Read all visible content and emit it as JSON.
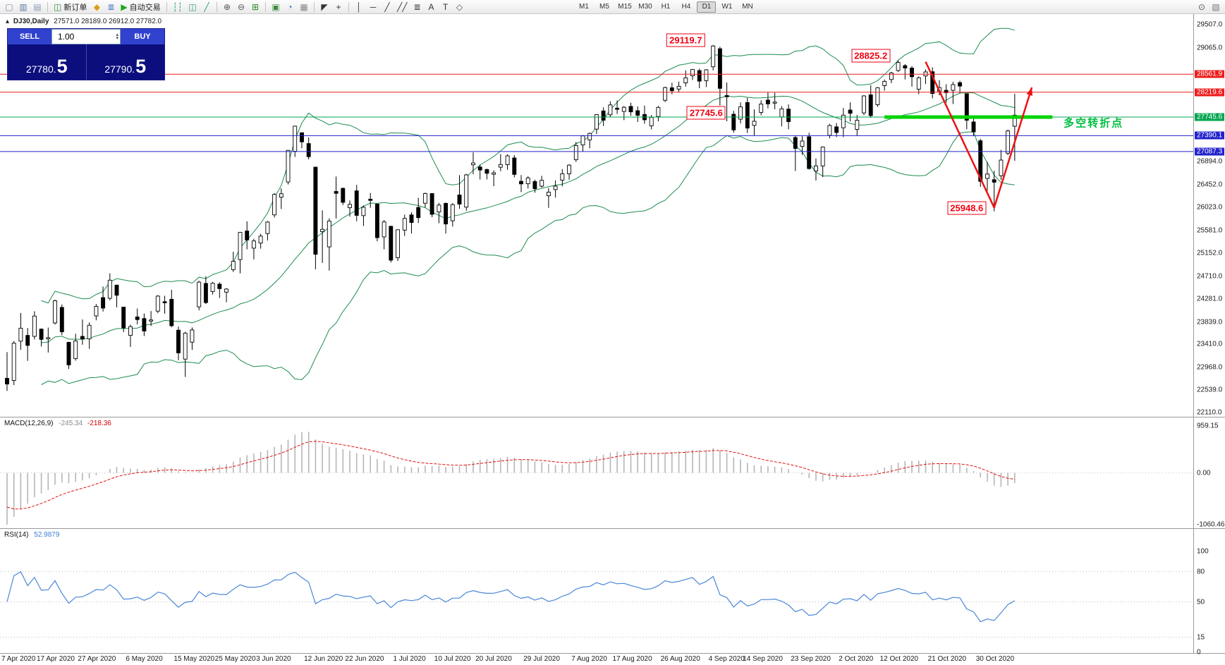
{
  "toolbar": {
    "items": [
      {
        "t": "i",
        "name": "new-window-icon",
        "g": "▢",
        "c": "#7a8aa8"
      },
      {
        "t": "i",
        "name": "chart-window-icon",
        "g": "▥",
        "c": "#5a78a8"
      },
      {
        "t": "i",
        "name": "clipboard-icon",
        "g": "▤",
        "c": "#8a9ab8"
      },
      {
        "t": "s"
      },
      {
        "t": "b",
        "name": "new-order-button",
        "g": "◫",
        "c": "#3c8a3c",
        "label": "新订单"
      },
      {
        "t": "i",
        "name": "indicators-icon",
        "g": "◆",
        "c": "#d8a018"
      },
      {
        "t": "i",
        "name": "depth-of-market-icon",
        "g": "≣",
        "c": "#3a6cc8"
      },
      {
        "t": "b",
        "name": "autotrading-button",
        "g": "▶",
        "c": "#18a818",
        "label": "自动交易"
      },
      {
        "t": "s"
      },
      {
        "t": "i",
        "name": "bar-chart-type-icon",
        "g": "┆┆",
        "c": "#2a9a7a"
      },
      {
        "t": "i",
        "name": "candle-chart-type-icon",
        "g": "◫",
        "c": "#2a9a7a"
      },
      {
        "t": "i",
        "name": "line-chart-type-ic",
        "g": "╱",
        "c": "#2a9a7a"
      },
      {
        "t": "s"
      },
      {
        "t": "i",
        "name": "zoom-in-icon",
        "g": "⊕",
        "c": "#555555"
      },
      {
        "t": "i",
        "name": "zoom-out-icon",
        "g": "⊖",
        "c": "#555555"
      },
      {
        "t": "i",
        "name": "tile-windows-icon",
        "g": "⊞",
        "c": "#2a8a2a"
      },
      {
        "t": "s"
      },
      {
        "t": "i",
        "name": "new-chart-icon",
        "g": "▣",
        "c": "#3c8a3c"
      },
      {
        "t": "i",
        "name": "profiles-icon",
        "g": "◔",
        "c": "#3a6cc8"
      },
      {
        "t": "i",
        "name": "data-window-icon",
        "g": "▦",
        "c": "#888888"
      },
      {
        "t": "s"
      },
      {
        "t": "i",
        "name": "cursor-icon",
        "g": "◤",
        "c": "#333333"
      },
      {
        "t": "i",
        "name": "crosshair-icon",
        "g": "+",
        "c": "#333333"
      },
      {
        "t": "s"
      },
      {
        "t": "i",
        "name": "vertical-line-icon",
        "g": "│",
        "c": "#333333"
      },
      {
        "t": "i",
        "name": "horizontal-line-icon",
        "g": "─",
        "c": "#333333"
      },
      {
        "t": "i",
        "name": "trendline-icon",
        "g": "╱",
        "c": "#333333"
      },
      {
        "t": "i",
        "name": "channel-icon",
        "g": "╱╱",
        "c": "#333333"
      },
      {
        "t": "i",
        "name": "fibonacci-icon",
        "g": "≣",
        "c": "#333333"
      },
      {
        "t": "i",
        "name": "text-tool-icon",
        "g": "A",
        "c": "#333333"
      },
      {
        "t": "i",
        "name": "label-tool-icon",
        "g": "T",
        "c": "#333333"
      },
      {
        "t": "i",
        "name": "shapes-tool-icon",
        "g": "◇",
        "c": "#555555"
      },
      {
        "t": "sp"
      },
      {
        "t": "tf"
      },
      {
        "t": "sp2"
      },
      {
        "t": "i",
        "name": "search-icon",
        "g": "⊙",
        "c": "#555555"
      },
      {
        "t": "i",
        "name": "window-menu-icon",
        "g": "▧",
        "c": "#777777"
      }
    ],
    "timeframes": [
      "M1",
      "M5",
      "M15",
      "M30",
      "H1",
      "H4",
      "D1",
      "W1",
      "MN"
    ],
    "active_timeframe": "D1"
  },
  "quote_panel": {
    "collapse_icon": "▴",
    "symbol": "DJ30,Daily",
    "ohlc_text": "27571.0 28189.0 26912.0 27782.0",
    "sell_label": "SELL",
    "buy_label": "BUY",
    "volume": "1.00",
    "sell_price_main": "27780.",
    "sell_price_big": "5",
    "buy_price_main": "27790.",
    "buy_price_big": "5"
  },
  "macd_panel": {
    "title": "MACD(12,26,9)",
    "value_main": "-245.34",
    "value_signal": "-218.36",
    "ticks": [
      "959.15",
      "0.00",
      "-1060.46"
    ],
    "tick_values": [
      959.15,
      0,
      -1060.46
    ]
  },
  "rsi_panel": {
    "title": "RSI(14)",
    "value": "52.9879",
    "ticks": [
      "100",
      "80",
      "50",
      "15",
      "0"
    ],
    "tick_values": [
      100,
      80,
      50,
      15,
      0
    ],
    "level_lines": [
      80,
      50,
      15
    ]
  },
  "chart_data": {
    "type": "candlestick",
    "symbol": "DJ30",
    "timeframe": "Daily",
    "indicators": [
      {
        "type": "bollinger",
        "period": 20,
        "deviation": 2,
        "color": "#1c8c4e"
      },
      {
        "type": "macd",
        "fast": 12,
        "slow": 26,
        "signal": 9,
        "current_macd": -245.34,
        "current_signal": -218.36
      },
      {
        "type": "rsi",
        "period": 14,
        "current": 52.9879
      }
    ],
    "price_axis_ticks": [
      29507.0,
      29065.0,
      26894.0,
      26452.0,
      26023.0,
      25581.0,
      25152.0,
      24710.0,
      24281.0,
      23839.0,
      23410.0,
      22968.0,
      22539.0,
      22110.0
    ],
    "levels": [
      {
        "price": 28561.9,
        "color": "#ee1c1c",
        "width": 1
      },
      {
        "price": 28219.6,
        "color": "#ee1c1c",
        "width": 1
      },
      {
        "price": 27745.6,
        "color": "#00a550",
        "width": 1
      },
      {
        "price": 27390.1,
        "color": "#2222cc",
        "width": 1
      },
      {
        "price": 27087.3,
        "color": "#2222cc",
        "width": 1
      }
    ],
    "trend_segment": {
      "price": 27745.6,
      "i1": 128,
      "i2": 152.5,
      "color": "#00d400",
      "width": 5
    },
    "arrow": {
      "points": [
        [
          134,
          28800
        ],
        [
          144,
          26020
        ],
        [
          149.5,
          28310
        ]
      ],
      "color": "#ee1111",
      "width": 2.5
    },
    "annotations": [
      {
        "text": "29119.7",
        "i": 99,
        "price": 29210
      },
      {
        "text": "28825.2",
        "i": 126,
        "price": 28920
      },
      {
        "text": "27745.6",
        "i": 102,
        "price": 27830
      },
      {
        "text": "25948.6",
        "i": 140,
        "price": 26010
      }
    ],
    "note": {
      "text": "多空转折点",
      "i": 158.5,
      "price": 27640,
      "color": "#00c040"
    },
    "time_ticks": [
      [
        "7 Apr 2020",
        0
      ],
      [
        "17 Apr 2020",
        7
      ],
      [
        "27 Apr 2020",
        13
      ],
      [
        "6 May 2020",
        20
      ],
      [
        "15 May 2020",
        27
      ],
      [
        "25 May 2020",
        33
      ],
      [
        "3 Jun 2020",
        39
      ],
      [
        "12 Jun 2020",
        46
      ],
      [
        "22 Jun 2020",
        52
      ],
      [
        "1 Jul 2020",
        59
      ],
      [
        "10 Jul 2020",
        65
      ],
      [
        "20 Jul 2020",
        71
      ],
      [
        "29 Jul 2020",
        78
      ],
      [
        "7 Aug 2020",
        85
      ],
      [
        "17 Aug 2020",
        91
      ],
      [
        "26 Aug 2020",
        98
      ],
      [
        "4 Sep 2020",
        105
      ],
      [
        "14 Sep 2020",
        110
      ],
      [
        "23 Sep 2020",
        117
      ],
      [
        "2 Oct 2020",
        124
      ],
      [
        "12 Oct 2020",
        130
      ],
      [
        "21 Oct 2020",
        137
      ],
      [
        "30 Oct 2020",
        144
      ]
    ],
    "ohlc": [
      [
        22763,
        23264,
        22522,
        22654
      ],
      [
        22722,
        23474,
        22634,
        23434
      ],
      [
        23471,
        24009,
        23306,
        23719
      ],
      [
        23582,
        23723,
        23096,
        23391
      ],
      [
        23562,
        24041,
        23503,
        23950
      ],
      [
        23701,
        23715,
        23369,
        23504
      ],
      [
        23520,
        23731,
        23255,
        23538
      ],
      [
        23819,
        24264,
        23790,
        24242
      ],
      [
        24115,
        24170,
        23585,
        23650
      ],
      [
        23450,
        23459,
        22941,
        23019
      ],
      [
        23139,
        23613,
        23100,
        23476
      ],
      [
        23563,
        23885,
        23404,
        23515
      ],
      [
        23515,
        23829,
        23328,
        23775
      ],
      [
        23952,
        24180,
        23869,
        24134
      ],
      [
        24302,
        24512,
        24036,
        24102
      ],
      [
        24289,
        24765,
        24250,
        24634
      ],
      [
        24540,
        24549,
        24115,
        24346
      ],
      [
        24121,
        24122,
        23645,
        23724
      ],
      [
        23582,
        23787,
        23361,
        23749
      ],
      [
        23934,
        24094,
        23791,
        23883
      ],
      [
        23903,
        23999,
        23570,
        23665
      ],
      [
        23871,
        24045,
        23762,
        23876
      ],
      [
        24044,
        24349,
        24005,
        24331
      ],
      [
        24224,
        24337,
        23996,
        24222
      ],
      [
        24270,
        24452,
        23738,
        23765
      ],
      [
        23681,
        23748,
        23108,
        23248
      ],
      [
        23130,
        23653,
        22790,
        23625
      ],
      [
        23452,
        23733,
        23306,
        23685
      ],
      [
        24126,
        24624,
        24060,
        24597
      ],
      [
        24573,
        24711,
        24182,
        24207
      ],
      [
        24418,
        24601,
        24360,
        24576
      ],
      [
        24560,
        24595,
        24294,
        24474
      ],
      [
        24406,
        24482,
        24214,
        24465
      ],
      [
        24836,
        25176,
        24790,
        24995
      ],
      [
        25027,
        25549,
        24765,
        25548
      ],
      [
        25573,
        25758,
        25222,
        25401
      ],
      [
        25246,
        25424,
        25032,
        25383
      ],
      [
        25342,
        25519,
        25236,
        25475
      ],
      [
        25524,
        25763,
        25391,
        25743
      ],
      [
        25880,
        26296,
        25830,
        26270
      ],
      [
        26218,
        26384,
        25992,
        26282
      ],
      [
        26509,
        27111,
        26460,
        27111
      ],
      [
        27093,
        27580,
        26985,
        27572
      ],
      [
        27447,
        27448,
        27151,
        27272
      ],
      [
        27240,
        27355,
        26938,
        26990
      ],
      [
        26790,
        26794,
        24843,
        25128
      ],
      [
        25560,
        25965,
        24963,
        25605
      ],
      [
        25270,
        25816,
        24817,
        25763
      ],
      [
        26326,
        26611,
        25811,
        26290
      ],
      [
        26386,
        26400,
        26068,
        26120
      ],
      [
        26016,
        26156,
        25848,
        26080
      ],
      [
        26339,
        26451,
        25759,
        25871
      ],
      [
        25865,
        26059,
        25667,
        26025
      ],
      [
        26180,
        26298,
        26016,
        26156
      ],
      [
        26086,
        26101,
        25376,
        25446
      ],
      [
        25459,
        25782,
        25222,
        25746
      ],
      [
        25662,
        25672,
        24971,
        25016
      ],
      [
        25063,
        25602,
        25000,
        25596
      ],
      [
        25590,
        25886,
        25476,
        25813
      ],
      [
        25880,
        25931,
        25524,
        25735
      ],
      [
        26021,
        26204,
        25725,
        25827
      ],
      [
        26101,
        26306,
        26020,
        26287
      ],
      [
        26287,
        26289,
        25835,
        25890
      ],
      [
        25935,
        26109,
        25720,
        26067
      ],
      [
        26099,
        26115,
        25523,
        25706
      ],
      [
        25767,
        26106,
        25658,
        26075
      ],
      [
        26259,
        26639,
        25997,
        26086
      ],
      [
        26028,
        26661,
        25960,
        26643
      ],
      [
        26835,
        27071,
        26654,
        26870
      ],
      [
        26793,
        26839,
        26555,
        26735
      ],
      [
        26745,
        26762,
        26557,
        26672
      ],
      [
        26654,
        26729,
        26428,
        26681
      ],
      [
        26789,
        27041,
        26713,
        26840
      ],
      [
        26838,
        27036,
        26740,
        27006
      ],
      [
        26965,
        27021,
        26594,
        26652
      ],
      [
        26520,
        26639,
        26313,
        26470
      ],
      [
        26474,
        26617,
        26384,
        26585
      ],
      [
        26516,
        26551,
        26303,
        26379
      ],
      [
        26427,
        26625,
        26401,
        26539
      ],
      [
        26245,
        26391,
        26013,
        26313
      ],
      [
        26364,
        26538,
        26211,
        26428
      ],
      [
        26543,
        26753,
        26424,
        26664
      ],
      [
        26664,
        26848,
        26551,
        26828
      ],
      [
        26933,
        27270,
        26890,
        27202
      ],
      [
        27215,
        27401,
        27087,
        27387
      ],
      [
        27310,
        27450,
        27150,
        27433
      ],
      [
        27515,
        27800,
        27423,
        27791
      ],
      [
        27863,
        27931,
        27576,
        27687
      ],
      [
        27789,
        28047,
        27746,
        27977
      ],
      [
        27915,
        28060,
        27804,
        27897
      ],
      [
        27851,
        27959,
        27686,
        27931
      ],
      [
        27949,
        28020,
        27771,
        27845
      ],
      [
        27866,
        27949,
        27651,
        27778
      ],
      [
        27795,
        27964,
        27618,
        27693
      ],
      [
        27578,
        27786,
        27510,
        27740
      ],
      [
        27756,
        27959,
        27664,
        27930
      ],
      [
        28066,
        28326,
        28030,
        28308
      ],
      [
        28304,
        28399,
        28178,
        28248
      ],
      [
        28280,
        28422,
        28215,
        28332
      ],
      [
        28397,
        28634,
        28326,
        28493
      ],
      [
        28531,
        28661,
        28452,
        28654
      ],
      [
        28632,
        28668,
        28295,
        28430
      ],
      [
        28439,
        28659,
        28319,
        28646
      ],
      [
        28704,
        29119.7,
        28636,
        29101
      ],
      [
        29049,
        29087,
        27968,
        28293
      ],
      [
        28156,
        28404,
        27665,
        28133
      ],
      [
        27799,
        27862,
        27447,
        27501
      ],
      [
        27704,
        28025,
        27624,
        27940
      ],
      [
        28022,
        28113,
        27440,
        27535
      ],
      [
        27586,
        27891,
        27392,
        27666
      ],
      [
        27834,
        28066,
        27780,
        27993
      ],
      [
        28069,
        28217,
        27912,
        27996
      ],
      [
        28011,
        28210,
        27894,
        28032
      ],
      [
        27749,
        27954,
        27566,
        27902
      ],
      [
        27897,
        27988,
        27511,
        27657
      ],
      [
        27356,
        27395,
        26716,
        27148
      ],
      [
        27186,
        27380,
        27023,
        27288
      ],
      [
        27370,
        27446,
        26744,
        26763
      ],
      [
        26717,
        26955,
        26537,
        26815
      ],
      [
        26814,
        27184,
        26599,
        27174
      ],
      [
        27397,
        27616,
        27340,
        27584
      ],
      [
        27559,
        27633,
        27365,
        27452
      ],
      [
        27541,
        27919,
        27363,
        27782
      ],
      [
        27880,
        28026,
        27664,
        27817
      ],
      [
        27510,
        27786,
        27382,
        27683
      ],
      [
        27825,
        28162,
        27780,
        28149
      ],
      [
        28169,
        28354,
        27730,
        27773
      ],
      [
        27980,
        28314,
        27940,
        28303
      ],
      [
        28345,
        28462,
        28248,
        28426
      ],
      [
        28460,
        28608,
        28391,
        28587
      ],
      [
        28633,
        28825.2,
        28603,
        28786
      ],
      [
        28726,
        28755,
        28463,
        28680
      ],
      [
        28680,
        28718,
        28325,
        28514
      ],
      [
        28278,
        28519,
        28181,
        28494
      ],
      [
        28530,
        28653,
        28373,
        28606
      ],
      [
        28610,
        28694,
        28105,
        28195
      ],
      [
        28239,
        28450,
        28161,
        28309
      ],
      [
        28255,
        28371,
        28019,
        28211
      ],
      [
        28255,
        28418,
        27994,
        28364
      ],
      [
        28402,
        28438,
        28203,
        28336
      ],
      [
        28191,
        28192,
        27511,
        27685
      ],
      [
        27653,
        27777,
        27379,
        27463
      ],
      [
        27294,
        27332,
        26415,
        26520
      ],
      [
        26575,
        26891,
        26340,
        26659
      ],
      [
        26551,
        26721,
        25948.6,
        26502
      ],
      [
        26626,
        27119,
        26548,
        26925
      ],
      [
        27055,
        27507,
        27020,
        27480
      ],
      [
        27571,
        28189,
        26912,
        27782
      ]
    ]
  }
}
